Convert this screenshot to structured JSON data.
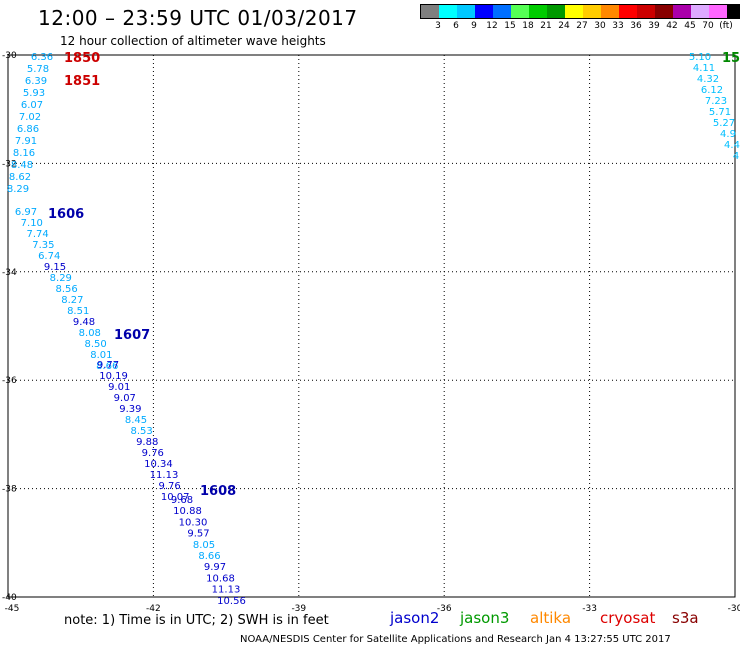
{
  "header": {
    "title": "12:00 – 23:59 UTC 01/03/2017",
    "subtitle": "12 hour collection of altimeter wave heights"
  },
  "legend": {
    "colors": [
      "#7f7f7f",
      "#00ffff",
      "#00c8ff",
      "#0000ff",
      "#006fff",
      "#55ff55",
      "#00cc00",
      "#009900",
      "#ffff00",
      "#ffcc00",
      "#ff8800",
      "#ff0000",
      "#cc0000",
      "#880000",
      "#aa00aa",
      "#ddaaff",
      "#ff66ff",
      "#000000"
    ],
    "labels": [
      "3",
      "6",
      "9",
      "12",
      "15",
      "18",
      "21",
      "24",
      "27",
      "30",
      "33",
      "36",
      "39",
      "42",
      "45",
      "70",
      "(ft)"
    ]
  },
  "axes": {
    "x_ticks": [
      "-45",
      "-42",
      "-39",
      "-36",
      "-33",
      "-30"
    ],
    "y_ticks": [
      "-30",
      "-32",
      "-34",
      "-36",
      "-38",
      "-40"
    ]
  },
  "passes": [
    {
      "label": "1850",
      "color": "#cc0000"
    },
    {
      "label": "1851",
      "color": "#cc0000"
    },
    {
      "label": "1606",
      "color": "#0000aa"
    },
    {
      "label": "1607",
      "color": "#0000aa"
    },
    {
      "label": "1608",
      "color": "#0000aa"
    },
    {
      "label": "15",
      "color": "#008800"
    }
  ],
  "left_track_values": [
    "6.36",
    "5.78",
    "6.39",
    "5.93",
    "6.07",
    "7.02",
    "6.86",
    "7.91",
    "8.16",
    "8.48",
    "8.62",
    "8.29",
    "6.97",
    "7.10",
    "7.74",
    "7.35",
    "6.74",
    "9.15",
    "8.29",
    "8.56",
    "8.27",
    "8.51",
    "9.48",
    "8.08",
    "8.50",
    "8.01",
    "8.66",
    "9.77",
    "10.19",
    "9.01",
    "9.07",
    "9.39",
    "8.45",
    "8.53",
    "9.88",
    "9.76",
    "10.34",
    "11.13",
    "9.76",
    "10.07",
    "9.68",
    "10.88",
    "10.30",
    "9.57",
    "8.05",
    "8.66",
    "9.97",
    "10.68",
    "11.13",
    "10.56"
  ],
  "right_track_values": [
    "5.10",
    "4.11",
    "4.32",
    "6.12",
    "7.23",
    "5.71",
    "5.27",
    "4.9",
    "4.4",
    "4"
  ],
  "footer": {
    "note": "note: 1) Time is in UTC; 2) SWH is in feet",
    "missions": [
      {
        "name": "jason2",
        "color": "#0000cc"
      },
      {
        "name": "jason3",
        "color": "#009900"
      },
      {
        "name": "altika",
        "color": "#ff8800"
      },
      {
        "name": "cryosat",
        "color": "#dd0000"
      },
      {
        "name": "s3a",
        "color": "#880000"
      }
    ],
    "credit": "NOAA/NESDIS Center for Satellite Applications and Research   Jan  4 13:27:55 UTC 2017"
  }
}
